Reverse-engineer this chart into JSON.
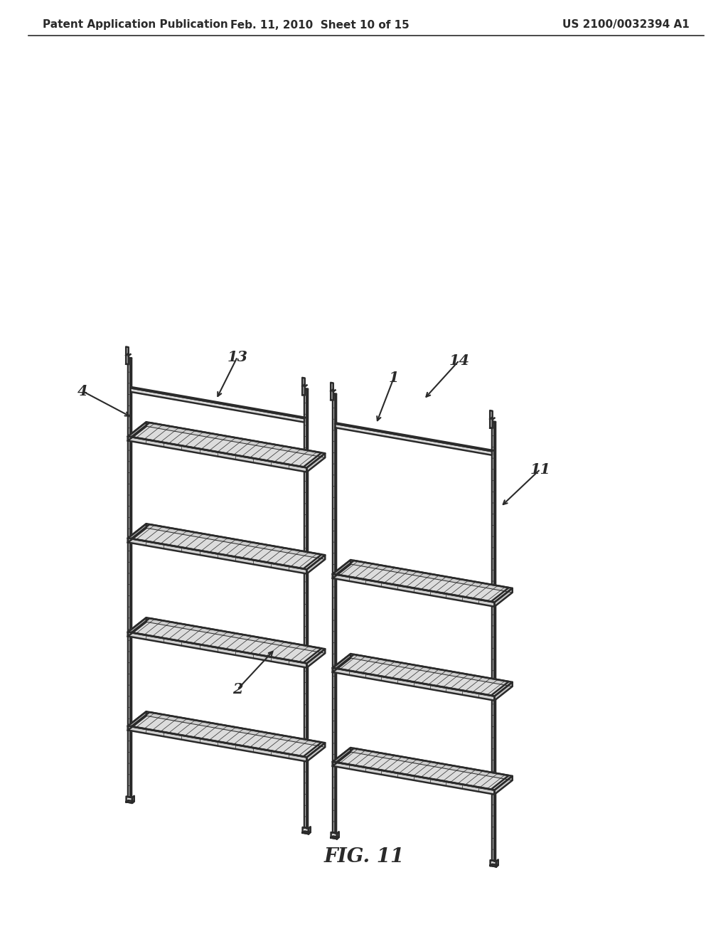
{
  "title_left": "Patent Application Publication",
  "title_center": "Feb. 11, 2010  Sheet 10 of 15",
  "title_right": "US 2100/0032394 A1",
  "fig_label": "FIG. 11",
  "bg_color": "#ffffff",
  "line_color": "#2a2a2a"
}
